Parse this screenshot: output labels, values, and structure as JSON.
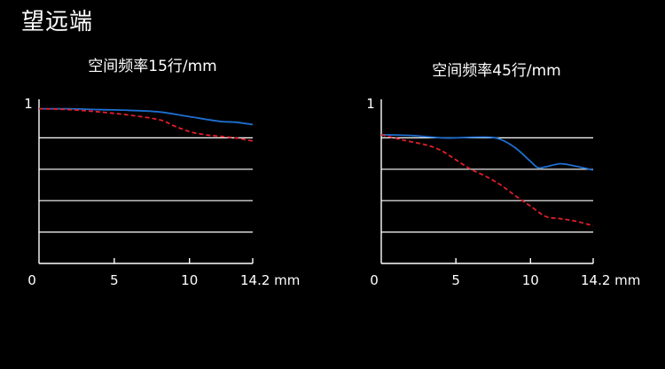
{
  "page": {
    "title": "望远端"
  },
  "colors": {
    "background": "#000000",
    "sagittal": "#1f6fd0",
    "meridional": "#e0202a",
    "grid": "#ffffff"
  },
  "chart_data": [
    {
      "type": "line",
      "title": "空间频率15行/mm",
      "xlim": [
        0,
        14.2
      ],
      "ylim": [
        0,
        1
      ],
      "x_ticks": [
        0,
        5,
        10,
        14.2
      ],
      "x_tick_labels": [
        "0",
        "5",
        "10",
        "14.2 mm"
      ],
      "y_tick_labels": [
        "1"
      ],
      "y_gridlines": [
        0.2,
        0.4,
        0.6,
        0.8
      ],
      "grid": true,
      "series": [
        {
          "color": "#1f6fd0",
          "style": "solid",
          "points": [
            [
              0,
              0.985
            ],
            [
              2,
              0.985
            ],
            [
              4,
              0.98
            ],
            [
              6,
              0.975
            ],
            [
              8,
              0.965
            ],
            [
              10,
              0.935
            ],
            [
              12,
              0.905
            ],
            [
              13,
              0.9
            ],
            [
              14.2,
              0.885
            ]
          ]
        },
        {
          "color": "#e0202a",
          "style": "dashed",
          "points": [
            [
              0,
              0.985
            ],
            [
              2,
              0.98
            ],
            [
              4,
              0.965
            ],
            [
              6,
              0.945
            ],
            [
              8,
              0.915
            ],
            [
              9,
              0.875
            ],
            [
              10,
              0.84
            ],
            [
              11,
              0.82
            ],
            [
              12,
              0.81
            ],
            [
              13,
              0.8
            ],
            [
              14.2,
              0.78
            ]
          ]
        }
      ]
    },
    {
      "type": "line",
      "title": "空间频率45行/mm",
      "xlim": [
        0,
        14.2
      ],
      "ylim": [
        0,
        1
      ],
      "x_ticks": [
        0,
        5,
        10,
        14.2
      ],
      "x_tick_labels": [
        "0",
        "5",
        "10",
        "14.2 mm"
      ],
      "y_tick_labels": [
        "1"
      ],
      "y_gridlines": [
        0.2,
        0.4,
        0.6,
        0.8
      ],
      "grid": true,
      "series": [
        {
          "color": "#1f6fd0",
          "style": "solid",
          "points": [
            [
              0,
              0.82
            ],
            [
              2,
              0.815
            ],
            [
              4,
              0.8
            ],
            [
              5,
              0.8
            ],
            [
              7,
              0.805
            ],
            [
              8,
              0.79
            ],
            [
              9,
              0.735
            ],
            [
              10,
              0.65
            ],
            [
              10.5,
              0.61
            ],
            [
              11,
              0.615
            ],
            [
              12,
              0.635
            ],
            [
              13,
              0.62
            ],
            [
              14.2,
              0.595
            ]
          ]
        },
        {
          "color": "#e0202a",
          "style": "dashed",
          "points": [
            [
              0,
              0.82
            ],
            [
              1.5,
              0.785
            ],
            [
              3,
              0.755
            ],
            [
              4,
              0.72
            ],
            [
              5,
              0.66
            ],
            [
              6,
              0.6
            ],
            [
              7,
              0.555
            ],
            [
              8,
              0.5
            ],
            [
              9,
              0.43
            ],
            [
              10,
              0.365
            ],
            [
              11,
              0.3
            ],
            [
              12,
              0.285
            ],
            [
              13,
              0.27
            ],
            [
              14.2,
              0.24
            ]
          ]
        }
      ]
    }
  ]
}
